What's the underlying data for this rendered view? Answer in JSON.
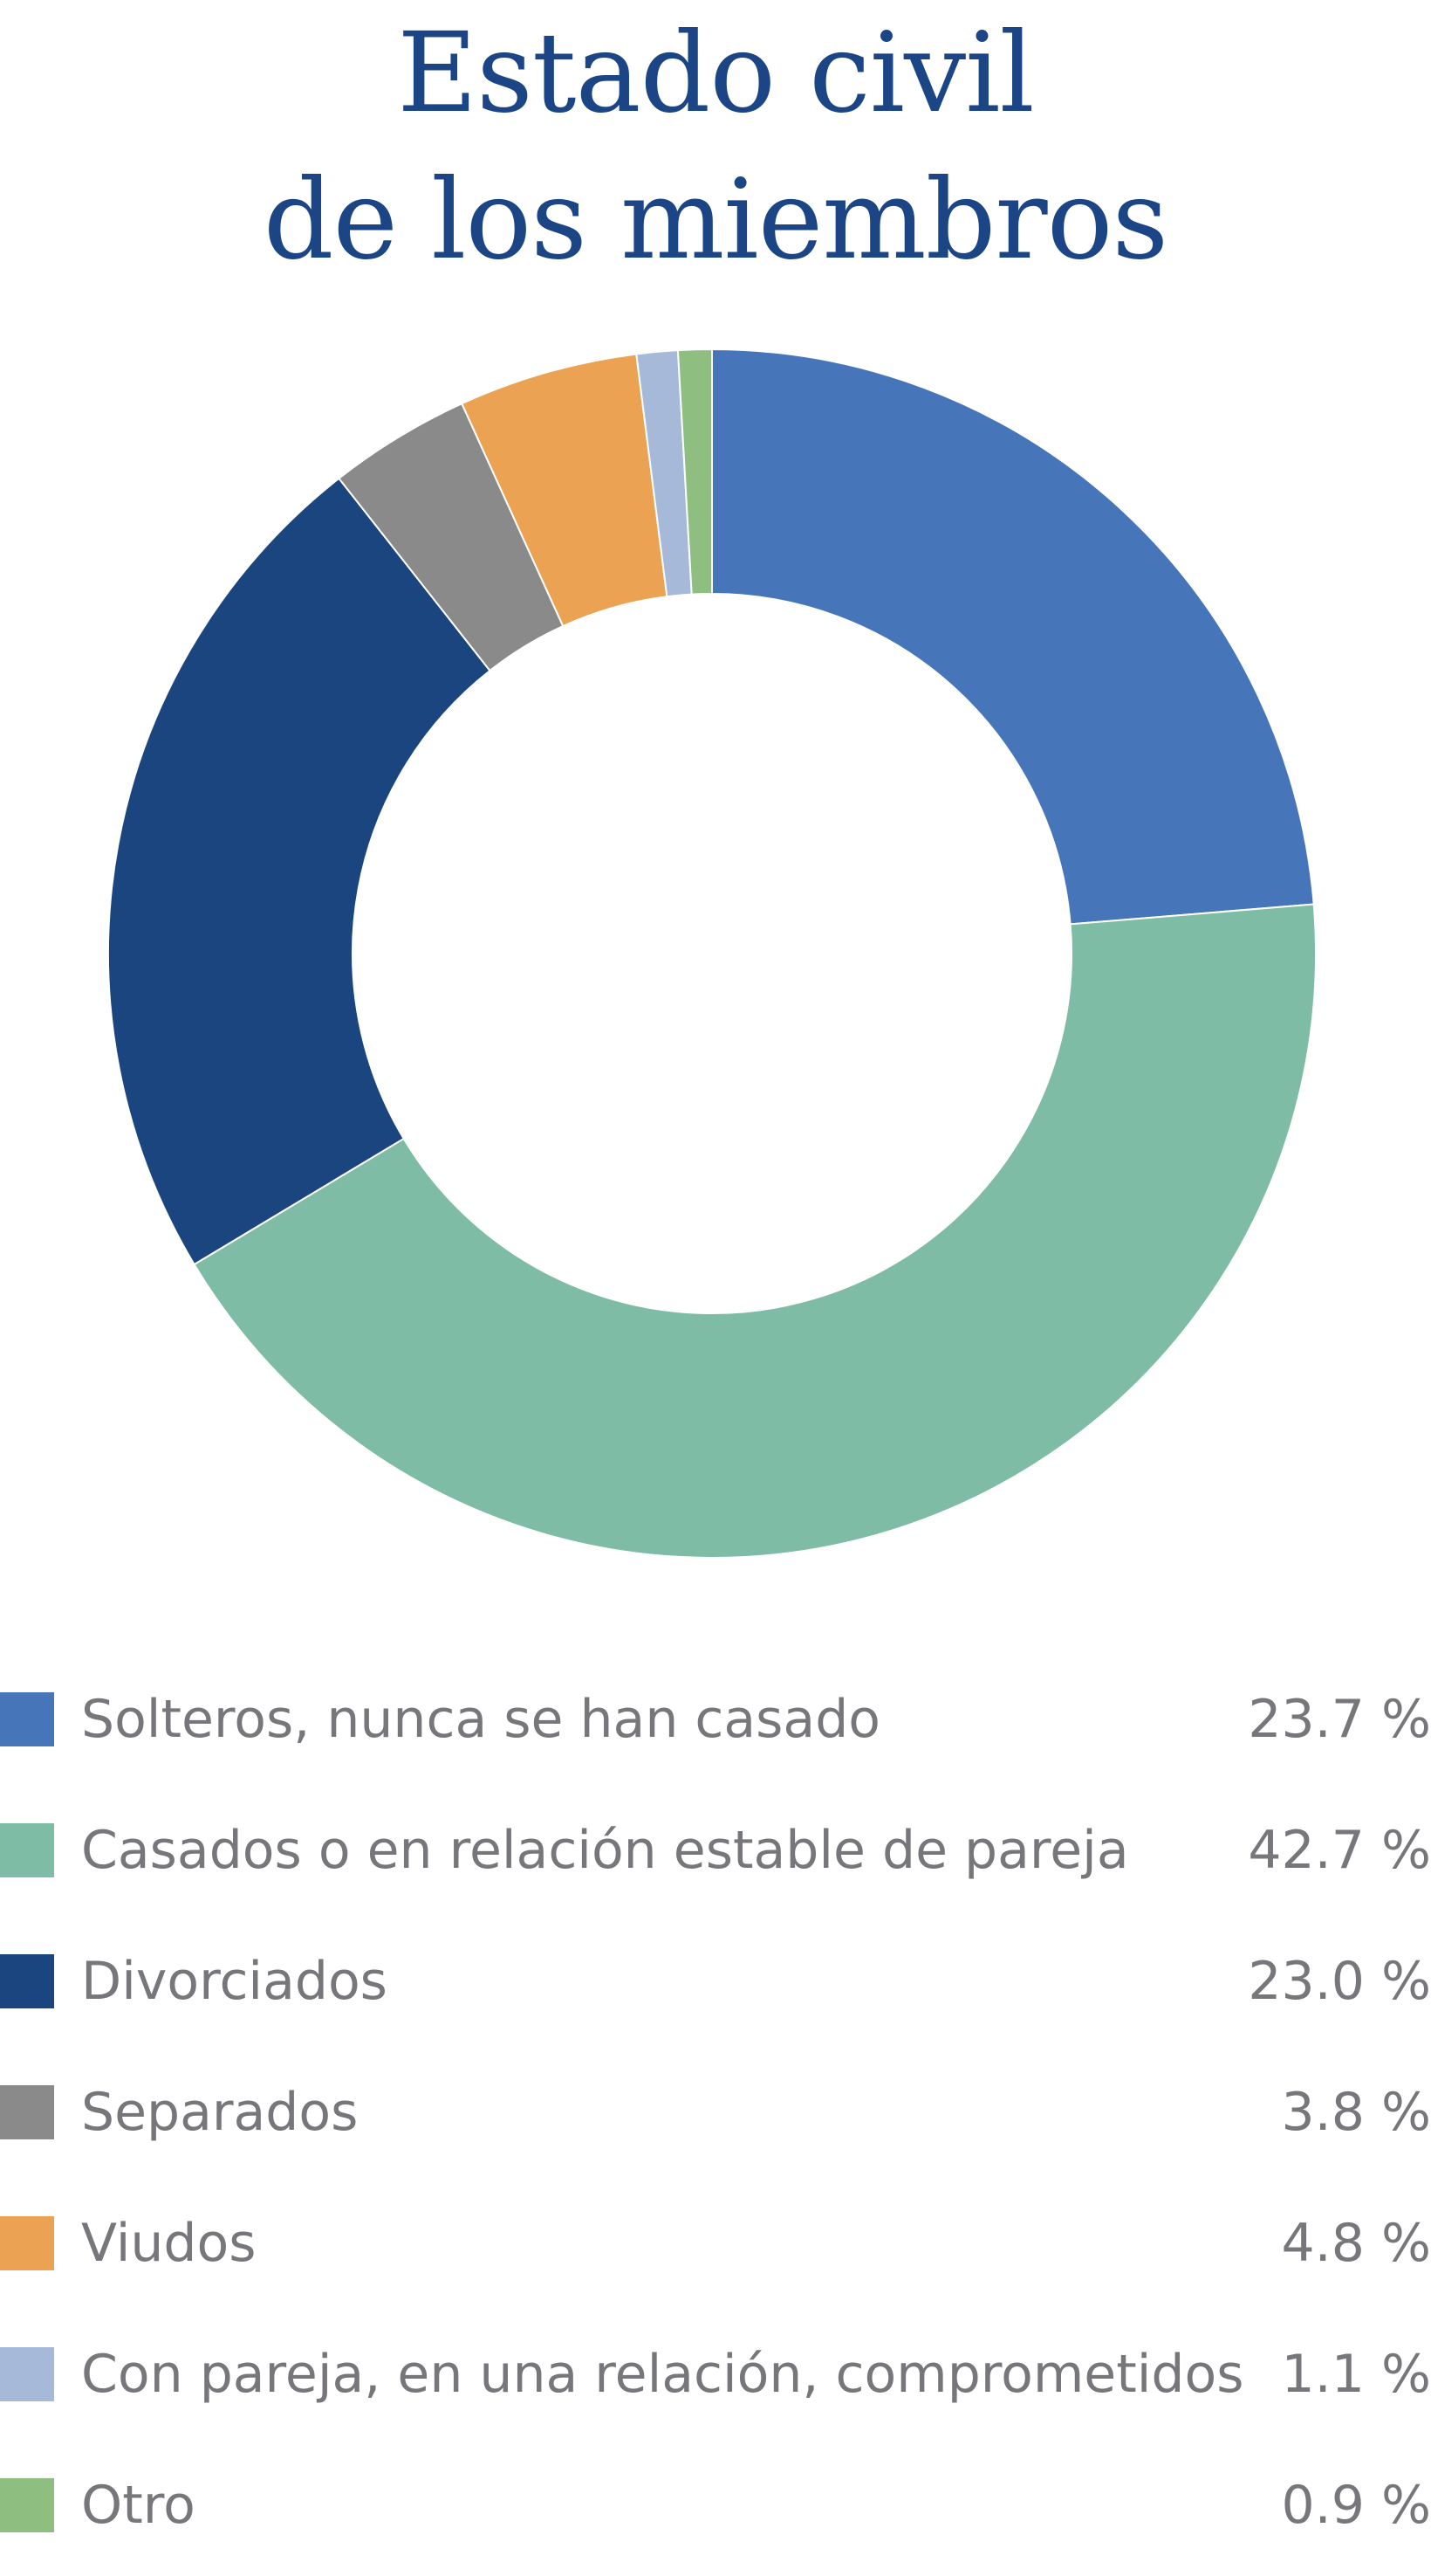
{
  "chart_data": {
    "type": "pie",
    "variant": "donut",
    "title_lines": [
      "Estado civil",
      "de los miembros"
    ],
    "categories": [
      "Solteros, nunca se han casado",
      "Casados o en relación estable de pareja",
      "Divorciados",
      "Separados",
      "Viudos",
      "Con pareja, en una relación, comprometidos",
      "Otro"
    ],
    "values": [
      23.7,
      42.7,
      23.0,
      3.8,
      4.8,
      1.1,
      0.9
    ],
    "value_labels": [
      "23.7 %",
      "42.7 %",
      "23.0 %",
      "3.8 %",
      "4.8 %",
      "1.1 %",
      "0.9 %"
    ],
    "colors": [
      "#4675ba",
      "#7ebca5",
      "#1b457e",
      "#8a8a8a",
      "#eba253",
      "#a7b9d9",
      "#8fbf80"
    ],
    "legend_position": "bottom"
  }
}
